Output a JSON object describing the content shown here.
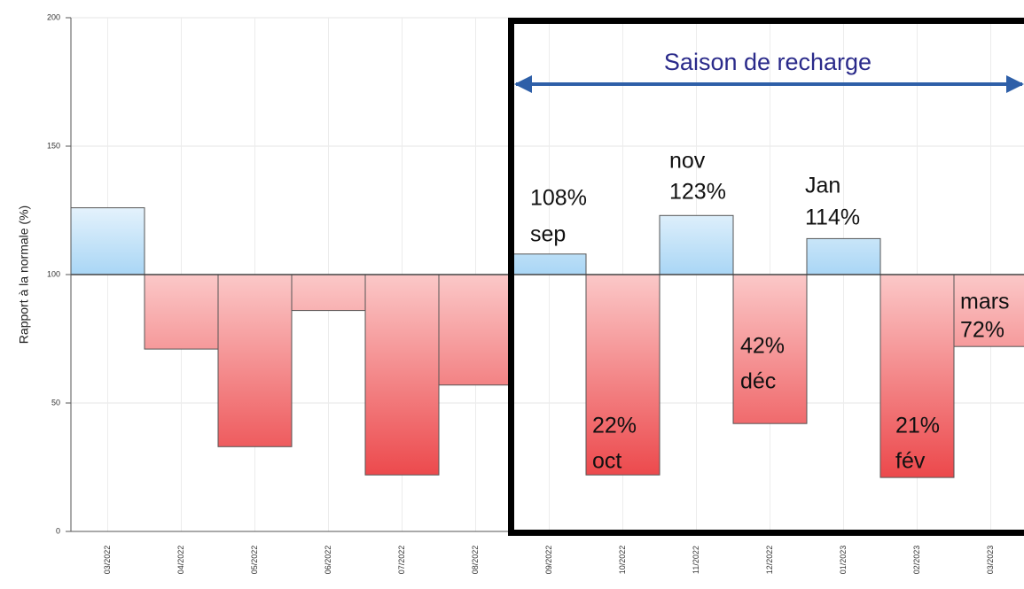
{
  "chart_data": {
    "type": "bar",
    "ylabel": "Rapport à la normale (%)",
    "categories": [
      "03/2022",
      "04/2022",
      "05/2022",
      "06/2022",
      "07/2022",
      "08/2022",
      "09/2022",
      "10/2022",
      "11/2022",
      "12/2022",
      "01/2023",
      "02/2023",
      "03/2023"
    ],
    "values": [
      126,
      71,
      33,
      86,
      22,
      57,
      108,
      22,
      123,
      42,
      114,
      21,
      72
    ],
    "baseline": 100,
    "color_above": "#a9d6f5",
    "color_below": "#e8262a",
    "ylim": [
      0,
      200
    ],
    "yticks": [
      0,
      50,
      100,
      150,
      200
    ],
    "grid": true,
    "annotations": [
      "Saison de recharge",
      "108%",
      "sep",
      "22%",
      "oct",
      "nov",
      "123%",
      "42%",
      "déc",
      "Jan",
      "114%",
      "21%",
      "fév",
      "mars",
      "72%"
    ]
  }
}
